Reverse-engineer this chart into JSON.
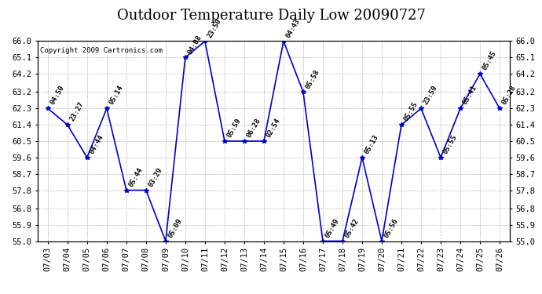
{
  "title": "Outdoor Temperature Daily Low 20090727",
  "copyright": "Copyright 2009 Cartronics.com",
  "x_labels": [
    "07/03",
    "07/04",
    "07/05",
    "07/06",
    "07/07",
    "07/08",
    "07/09",
    "07/10",
    "07/11",
    "07/12",
    "07/13",
    "07/14",
    "07/15",
    "07/16",
    "07/17",
    "07/18",
    "07/19",
    "07/20",
    "07/21",
    "07/22",
    "07/23",
    "07/24",
    "07/25",
    "07/26"
  ],
  "y_values": [
    62.3,
    61.4,
    59.6,
    62.3,
    57.8,
    57.8,
    55.0,
    65.1,
    66.0,
    60.5,
    60.5,
    60.5,
    66.0,
    63.2,
    55.0,
    55.0,
    59.6,
    55.0,
    61.4,
    62.3,
    59.6,
    62.3,
    64.2,
    62.3
  ],
  "point_labels": [
    "04:50",
    "23:27",
    "04:44",
    "05:14",
    "05:44",
    "03:29",
    "05:09",
    "04:08",
    "23:50",
    "05:59",
    "06:28",
    "02:54",
    "04:43",
    "05:58",
    "05:49",
    "05:42",
    "05:13",
    "05:56",
    "05:55",
    "23:59",
    "05:55",
    "05:41",
    "05:45",
    "05:28"
  ],
  "ylim": [
    55.0,
    66.0
  ],
  "yticks": [
    55.0,
    55.9,
    56.8,
    57.8,
    58.7,
    59.6,
    60.5,
    61.4,
    62.3,
    63.2,
    64.2,
    65.1,
    66.0
  ],
  "line_color": "#0000cc",
  "marker_color": "#0000cc",
  "bg_color": "#ffffff",
  "grid_color": "#bbbbbb",
  "title_fontsize": 13,
  "tick_fontsize": 7.5,
  "point_label_fontsize": 6.5
}
